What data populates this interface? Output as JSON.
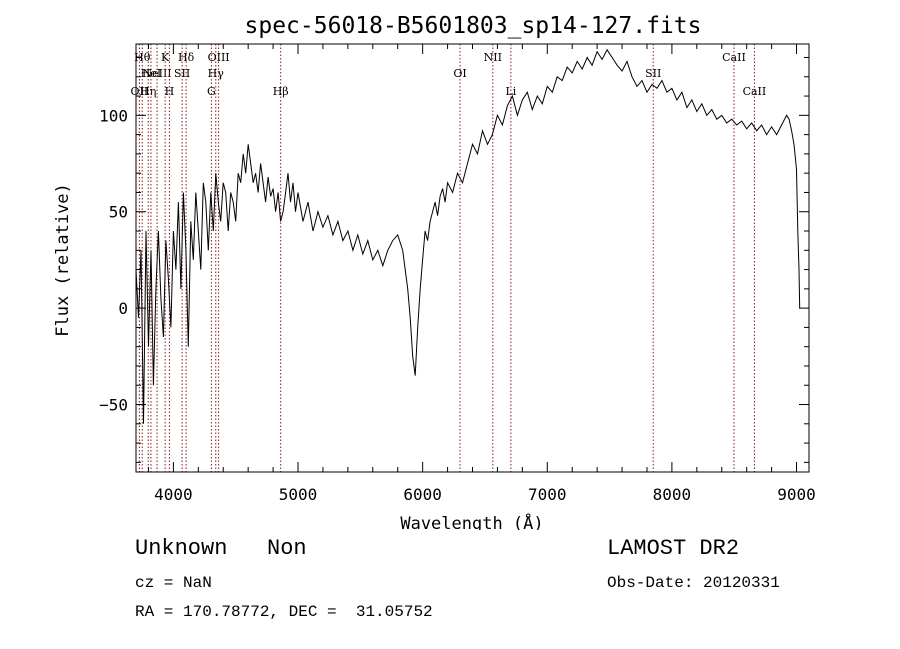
{
  "chart_data": {
    "type": "line",
    "title": "spec-56018-B5601803_sp14-127.fits",
    "xlabel": "Wavelength (Å)",
    "ylabel": "Flux (relative)",
    "xlim": [
      3700,
      9100
    ],
    "ylim": [
      -85,
      137
    ],
    "xticks": [
      4000,
      5000,
      6000,
      7000,
      8000,
      9000
    ],
    "yticks": [
      -50,
      0,
      50,
      100
    ],
    "grid": false,
    "series": [
      {
        "color": "#000000",
        "points": [
          [
            3700,
            20
          ],
          [
            3720,
            -5
          ],
          [
            3740,
            30
          ],
          [
            3760,
            -60
          ],
          [
            3780,
            40
          ],
          [
            3800,
            -20
          ],
          [
            3820,
            30
          ],
          [
            3840,
            -40
          ],
          [
            3860,
            10
          ],
          [
            3880,
            40
          ],
          [
            3900,
            5
          ],
          [
            3920,
            -15
          ],
          [
            3940,
            35
          ],
          [
            3960,
            15
          ],
          [
            3980,
            -10
          ],
          [
            4000,
            40
          ],
          [
            4020,
            20
          ],
          [
            4040,
            55
          ],
          [
            4060,
            10
          ],
          [
            4080,
            60
          ],
          [
            4100,
            30
          ],
          [
            4120,
            -20
          ],
          [
            4140,
            45
          ],
          [
            4160,
            25
          ],
          [
            4180,
            60
          ],
          [
            4200,
            40
          ],
          [
            4220,
            20
          ],
          [
            4240,
            65
          ],
          [
            4260,
            55
          ],
          [
            4280,
            30
          ],
          [
            4300,
            60
          ],
          [
            4320,
            40
          ],
          [
            4340,
            70
          ],
          [
            4360,
            55
          ],
          [
            4380,
            45
          ],
          [
            4400,
            65
          ],
          [
            4420,
            60
          ],
          [
            4440,
            40
          ],
          [
            4460,
            60
          ],
          [
            4480,
            55
          ],
          [
            4500,
            45
          ],
          [
            4520,
            70
          ],
          [
            4540,
            65
          ],
          [
            4560,
            80
          ],
          [
            4580,
            70
          ],
          [
            4600,
            85
          ],
          [
            4620,
            75
          ],
          [
            4640,
            65
          ],
          [
            4660,
            70
          ],
          [
            4680,
            60
          ],
          [
            4700,
            75
          ],
          [
            4720,
            65
          ],
          [
            4740,
            55
          ],
          [
            4760,
            68
          ],
          [
            4780,
            58
          ],
          [
            4800,
            62
          ],
          [
            4820,
            50
          ],
          [
            4840,
            60
          ],
          [
            4860,
            45
          ],
          [
            4880,
            50
          ],
          [
            4900,
            60
          ],
          [
            4920,
            70
          ],
          [
            4940,
            55
          ],
          [
            4960,
            65
          ],
          [
            4980,
            50
          ],
          [
            5000,
            60
          ],
          [
            5040,
            45
          ],
          [
            5080,
            55
          ],
          [
            5120,
            40
          ],
          [
            5160,
            50
          ],
          [
            5200,
            42
          ],
          [
            5240,
            48
          ],
          [
            5280,
            38
          ],
          [
            5320,
            45
          ],
          [
            5360,
            35
          ],
          [
            5400,
            40
          ],
          [
            5440,
            30
          ],
          [
            5480,
            38
          ],
          [
            5520,
            28
          ],
          [
            5560,
            35
          ],
          [
            5600,
            25
          ],
          [
            5640,
            30
          ],
          [
            5680,
            22
          ],
          [
            5720,
            30
          ],
          [
            5760,
            35
          ],
          [
            5800,
            38
          ],
          [
            5840,
            30
          ],
          [
            5860,
            20
          ],
          [
            5880,
            10
          ],
          [
            5900,
            -5
          ],
          [
            5920,
            -25
          ],
          [
            5940,
            -35
          ],
          [
            5960,
            -10
          ],
          [
            5980,
            10
          ],
          [
            6000,
            25
          ],
          [
            6020,
            40
          ],
          [
            6040,
            35
          ],
          [
            6060,
            45
          ],
          [
            6080,
            50
          ],
          [
            6100,
            55
          ],
          [
            6120,
            48
          ],
          [
            6140,
            58
          ],
          [
            6160,
            62
          ],
          [
            6180,
            55
          ],
          [
            6200,
            65
          ],
          [
            6240,
            60
          ],
          [
            6280,
            70
          ],
          [
            6320,
            65
          ],
          [
            6360,
            75
          ],
          [
            6400,
            85
          ],
          [
            6440,
            80
          ],
          [
            6480,
            92
          ],
          [
            6520,
            85
          ],
          [
            6560,
            90
          ],
          [
            6600,
            100
          ],
          [
            6640,
            95
          ],
          [
            6680,
            105
          ],
          [
            6720,
            110
          ],
          [
            6760,
            100
          ],
          [
            6800,
            108
          ],
          [
            6840,
            112
          ],
          [
            6880,
            103
          ],
          [
            6920,
            110
          ],
          [
            6960,
            106
          ],
          [
            7000,
            115
          ],
          [
            7040,
            112
          ],
          [
            7080,
            120
          ],
          [
            7120,
            118
          ],
          [
            7160,
            125
          ],
          [
            7200,
            122
          ],
          [
            7240,
            128
          ],
          [
            7280,
            124
          ],
          [
            7320,
            130
          ],
          [
            7360,
            126
          ],
          [
            7400,
            133
          ],
          [
            7440,
            129
          ],
          [
            7480,
            134
          ],
          [
            7520,
            130
          ],
          [
            7560,
            126
          ],
          [
            7600,
            123
          ],
          [
            7640,
            128
          ],
          [
            7680,
            120
          ],
          [
            7720,
            115
          ],
          [
            7760,
            118
          ],
          [
            7800,
            112
          ],
          [
            7840,
            116
          ],
          [
            7880,
            114
          ],
          [
            7920,
            118
          ],
          [
            7960,
            112
          ],
          [
            8000,
            114
          ],
          [
            8040,
            108
          ],
          [
            8080,
            112
          ],
          [
            8120,
            104
          ],
          [
            8160,
            108
          ],
          [
            8200,
            102
          ],
          [
            8240,
            106
          ],
          [
            8280,
            100
          ],
          [
            8320,
            103
          ],
          [
            8360,
            98
          ],
          [
            8400,
            100
          ],
          [
            8440,
            96
          ],
          [
            8480,
            98
          ],
          [
            8520,
            95
          ],
          [
            8560,
            97
          ],
          [
            8600,
            93
          ],
          [
            8640,
            96
          ],
          [
            8680,
            92
          ],
          [
            8720,
            95
          ],
          [
            8760,
            90
          ],
          [
            8800,
            94
          ],
          [
            8840,
            90
          ],
          [
            8880,
            95
          ],
          [
            8920,
            100
          ],
          [
            8940,
            98
          ],
          [
            8960,
            92
          ],
          [
            8980,
            85
          ],
          [
            9000,
            72
          ],
          [
            9010,
            40
          ],
          [
            9020,
            20
          ],
          [
            9025,
            0
          ]
        ]
      }
    ],
    "lines": [
      {
        "x": 3727,
        "label": "OII",
        "row": 3
      },
      {
        "x": 3750,
        "label": "Hθ",
        "row": 1
      },
      {
        "x": 3798,
        "label": "Hη",
        "row": 3
      },
      {
        "x": 3820,
        "label": "HeI",
        "row": 2
      },
      {
        "x": 3869,
        "label": "NeIII",
        "row": 2
      },
      {
        "x": 3934,
        "label": "K",
        "row": 1
      },
      {
        "x": 3968,
        "label": "H",
        "row": 3
      },
      {
        "x": 4070,
        "label": "SII",
        "row": 2
      },
      {
        "x": 4102,
        "label": "Hδ",
        "row": 1
      },
      {
        "x": 4305,
        "label": "G",
        "row": 3
      },
      {
        "x": 4340,
        "label": "Hγ",
        "row": 2
      },
      {
        "x": 4363,
        "label": "OIII",
        "row": 1
      },
      {
        "x": 4861,
        "label": "Hβ",
        "row": 3
      },
      {
        "x": 6300,
        "label": "OI",
        "row": 2
      },
      {
        "x": 6563,
        "label": "NII",
        "row": 1
      },
      {
        "x": 6708,
        "label": "Li",
        "row": 3
      },
      {
        "x": 7850,
        "label": "SII",
        "row": 2
      },
      {
        "x": 8498,
        "label": "CaII",
        "row": 1
      },
      {
        "x": 8662,
        "label": "CaII",
        "row": 3
      }
    ]
  },
  "annotations": {
    "object_class": "Unknown   Non",
    "cz": "cz = NaN",
    "ra_dec": "RA = 170.78772, DEC =  31.05752",
    "survey": "LAMOST DR2",
    "obs_date": "Obs-Date: 20120331"
  }
}
